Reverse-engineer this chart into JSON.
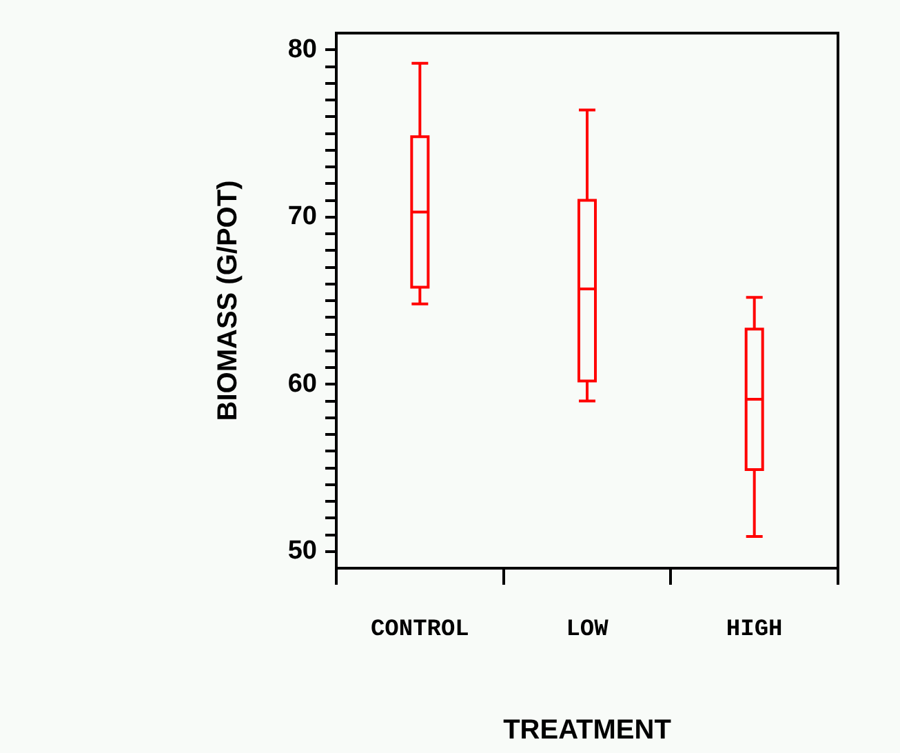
{
  "chart_data": {
    "type": "box",
    "xlabel": "TREATMENT",
    "ylabel": "BIOMASS (G/POT)",
    "categories": [
      "CONTROL",
      "LOW",
      "HIGH"
    ],
    "color": "#ff0000",
    "boxes": [
      {
        "low": 64.8,
        "q1": 65.8,
        "median": 70.3,
        "q3": 74.8,
        "high": 79.2
      },
      {
        "low": 59.0,
        "q1": 60.2,
        "median": 65.7,
        "q3": 71.0,
        "high": 76.4
      },
      {
        "low": 50.9,
        "q1": 54.9,
        "median": 59.1,
        "q3": 63.3,
        "high": 65.2
      }
    ],
    "ylim": [
      49,
      81
    ],
    "yticks": [
      {
        "value": 50,
        "label": "50"
      },
      {
        "value": 51,
        "label": null
      },
      {
        "value": 52,
        "label": null
      },
      {
        "value": 53,
        "label": null
      },
      {
        "value": 54,
        "label": null
      },
      {
        "value": 55,
        "label": null
      },
      {
        "value": 56,
        "label": null
      },
      {
        "value": 57,
        "label": null
      },
      {
        "value": 58,
        "label": null
      },
      {
        "value": 59,
        "label": null
      },
      {
        "value": 60,
        "label": "60"
      },
      {
        "value": 61,
        "label": null
      },
      {
        "value": 62,
        "label": null
      },
      {
        "value": 63,
        "label": null
      },
      {
        "value": 64,
        "label": null
      },
      {
        "value": 65,
        "label": null
      },
      {
        "value": 66,
        "label": null
      },
      {
        "value": 67,
        "label": null
      },
      {
        "value": 68,
        "label": null
      },
      {
        "value": 69,
        "label": null
      },
      {
        "value": 70,
        "label": "70"
      },
      {
        "value": 71,
        "label": null
      },
      {
        "value": 72,
        "label": null
      },
      {
        "value": 73,
        "label": null
      },
      {
        "value": 74,
        "label": null
      },
      {
        "value": 75,
        "label": null
      },
      {
        "value": 76,
        "label": null
      },
      {
        "value": 77,
        "label": null
      },
      {
        "value": 78,
        "label": null
      },
      {
        "value": 79,
        "label": null
      },
      {
        "value": 80,
        "label": "80"
      }
    ],
    "grid": false
  }
}
